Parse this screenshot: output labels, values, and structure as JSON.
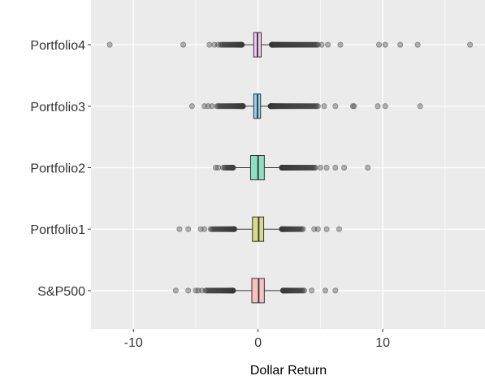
{
  "chart_data": {
    "type": "boxplot",
    "orientation": "horizontal",
    "xlabel": "Dollar Return",
    "ylabel": "",
    "xlim": [
      -13.4,
      18.2
    ],
    "x_ticks": [
      -10,
      0,
      10
    ],
    "x_tick_labels": [
      "-10",
      "0",
      "10"
    ],
    "grid": true,
    "legend": "none",
    "categories": [
      "S&P500",
      "Portfolio1",
      "Portfolio2",
      "Portfolio3",
      "Portfolio4"
    ],
    "series": [
      {
        "category": "S&P500",
        "color": "#F8C3BF",
        "q1": -0.5,
        "median": 0.05,
        "q3": 0.5,
        "whisker_low": -2.0,
        "whisker_high": 2.0,
        "outlier_band_low": [
          -4.2,
          -2.0
        ],
        "outlier_band_high": [
          2.0,
          3.7
        ],
        "outliers": [
          -6.6,
          -5.6,
          -5.0,
          -4.8,
          -4.5,
          4.3,
          5.4,
          6.2
        ]
      },
      {
        "category": "Portfolio1",
        "color": "#D6DB8A",
        "q1": -0.45,
        "median": 0.05,
        "q3": 0.45,
        "whisker_low": -1.9,
        "whisker_high": 1.9,
        "outlier_band_low": [
          -3.8,
          -1.9
        ],
        "outlier_band_high": [
          1.9,
          3.6
        ],
        "outliers": [
          -6.3,
          -5.6,
          -4.6,
          -4.3,
          4.5,
          4.8,
          5.5,
          6.5
        ]
      },
      {
        "category": "Portfolio2",
        "color": "#8FE0C3",
        "q1": -0.6,
        "median": 0.0,
        "q3": 0.5,
        "whisker_low": -2.0,
        "whisker_high": 1.9,
        "outlier_band_low": [
          -2.8,
          -2.0
        ],
        "outlier_band_high": [
          1.9,
          4.6
        ],
        "outliers": [
          -3.4,
          -3.2,
          5.0,
          5.5,
          6.2,
          6.9,
          8.8
        ]
      },
      {
        "category": "Portfolio3",
        "color": "#8FD3EF",
        "q1": -0.35,
        "median": -0.05,
        "q3": 0.2,
        "whisker_low": -1.2,
        "whisker_high": 1.0,
        "outlier_band_low": [
          -3.3,
          -1.2
        ],
        "outlier_band_high": [
          1.0,
          4.8
        ],
        "outliers": [
          -5.3,
          -4.3,
          -4.0,
          -3.7,
          5.3,
          6.2,
          7.6,
          7.7,
          9.6,
          10.2,
          13.0
        ]
      },
      {
        "category": "Portfolio4",
        "color": "#F2C8EF",
        "q1": -0.35,
        "median": -0.05,
        "q3": 0.25,
        "whisker_low": -1.3,
        "whisker_high": 1.1,
        "outlier_band_low": [
          -3.0,
          -1.3
        ],
        "outlier_band_high": [
          1.1,
          4.8
        ],
        "outliers": [
          -11.9,
          -6.0,
          -3.9,
          -3.5,
          -3.2,
          5.1,
          5.6,
          6.6,
          9.7,
          10.2,
          11.4,
          12.8,
          17.0
        ]
      }
    ]
  }
}
